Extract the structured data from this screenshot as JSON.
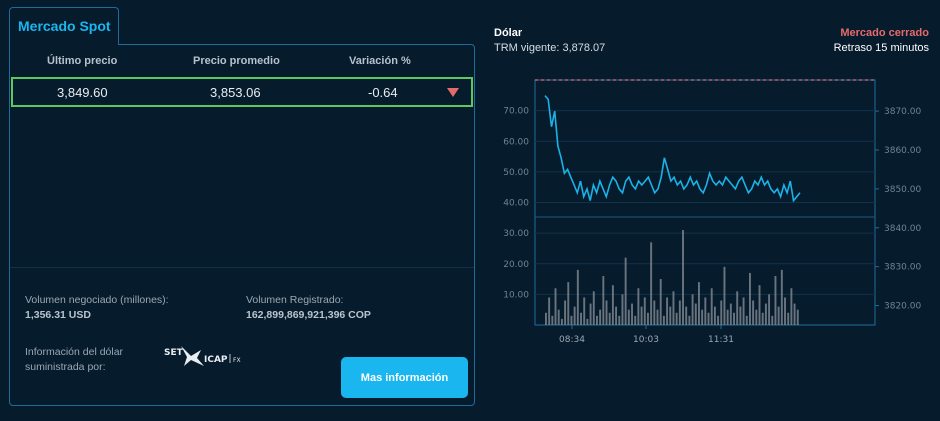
{
  "spot": {
    "tab_label": "Mercado Spot",
    "headers": {
      "last_price": "Último precio",
      "avg_price": "Precio promedio",
      "variation": "Variación %"
    },
    "row": {
      "last_price": "3,849.60",
      "avg_price": "3,853.06",
      "variation": "-0.64"
    },
    "volume_label": "Volumen negociado (millones):",
    "volume_value": "1,356.31 USD",
    "registered_label": "Volumen Registrado:",
    "registered_value": "162,899,869,921,396 COP",
    "info_line1": "Información del dólar",
    "info_line2": "suministrada por:",
    "logo": {
      "left": "SET",
      "right": "ICAP",
      "sub": "FX"
    },
    "more_button": "Mas información"
  },
  "chart_header": {
    "title": "Dólar",
    "trm": "TRM vigente: 3,878.07",
    "status": "Mercado cerrado",
    "delay": "Retraso 15 minutos",
    "status_color": "#e56b6b"
  },
  "chart_data": {
    "type": "line",
    "x_ticks": [
      "08:34",
      "10:03",
      "11:31"
    ],
    "left_axis": {
      "ticks": [
        10,
        20,
        30,
        40,
        50,
        60,
        70
      ],
      "labels": [
        "10.00",
        "20.00",
        "30.00",
        "40.00",
        "50.00",
        "60.00",
        "70.00"
      ]
    },
    "right_axis": {
      "ticks": [
        3820,
        3830,
        3840,
        3850,
        3860,
        3870
      ],
      "labels": [
        "3820.00",
        "3830.00",
        "3840.00",
        "3850.00",
        "3860.00",
        "3870.00"
      ]
    },
    "price_series": {
      "color": "#1ab3e8",
      "values": [
        3874,
        3873,
        3866,
        3870,
        3861,
        3858,
        3854,
        3855,
        3853,
        3851,
        3849,
        3852,
        3848,
        3850,
        3847,
        3851,
        3849,
        3852,
        3850,
        3848,
        3851,
        3853,
        3852,
        3850,
        3849,
        3852,
        3853,
        3851,
        3850,
        3852,
        3851,
        3852,
        3853,
        3851,
        3849,
        3850,
        3853,
        3858,
        3855,
        3852,
        3853,
        3851,
        3852,
        3850,
        3851,
        3853,
        3851,
        3852,
        3850,
        3849,
        3851,
        3854,
        3852,
        3851,
        3852,
        3851,
        3853,
        3852,
        3851,
        3850,
        3852,
        3853,
        3851,
        3849,
        3850,
        3852,
        3851,
        3853,
        3851,
        3852,
        3850,
        3849,
        3850,
        3848,
        3851,
        3849,
        3852,
        3847,
        3848,
        3849
      ],
      "y_range": [
        3815,
        3878
      ]
    },
    "reference_line": {
      "value": 3878.07,
      "color": "#e56b6b",
      "style": "dashed"
    },
    "volume_series": {
      "color": "#8c9399",
      "values": [
        4,
        9,
        3,
        12,
        5,
        2,
        8,
        14,
        3,
        6,
        18,
        4,
        9,
        2,
        7,
        11,
        3,
        5,
        16,
        8,
        4,
        13,
        6,
        3,
        10,
        22,
        5,
        7,
        3,
        12,
        6,
        9,
        4,
        27,
        8,
        5,
        15,
        3,
        9,
        6,
        11,
        4,
        8,
        31,
        6,
        3,
        10,
        7,
        14,
        5,
        9,
        4,
        12,
        6,
        3,
        8,
        19,
        5,
        7,
        4,
        11,
        6,
        9,
        3,
        17,
        8,
        5,
        13,
        4,
        7,
        10,
        3,
        16,
        6,
        18,
        9,
        4,
        12,
        7,
        5
      ],
      "y_range": [
        0,
        80
      ]
    }
  }
}
